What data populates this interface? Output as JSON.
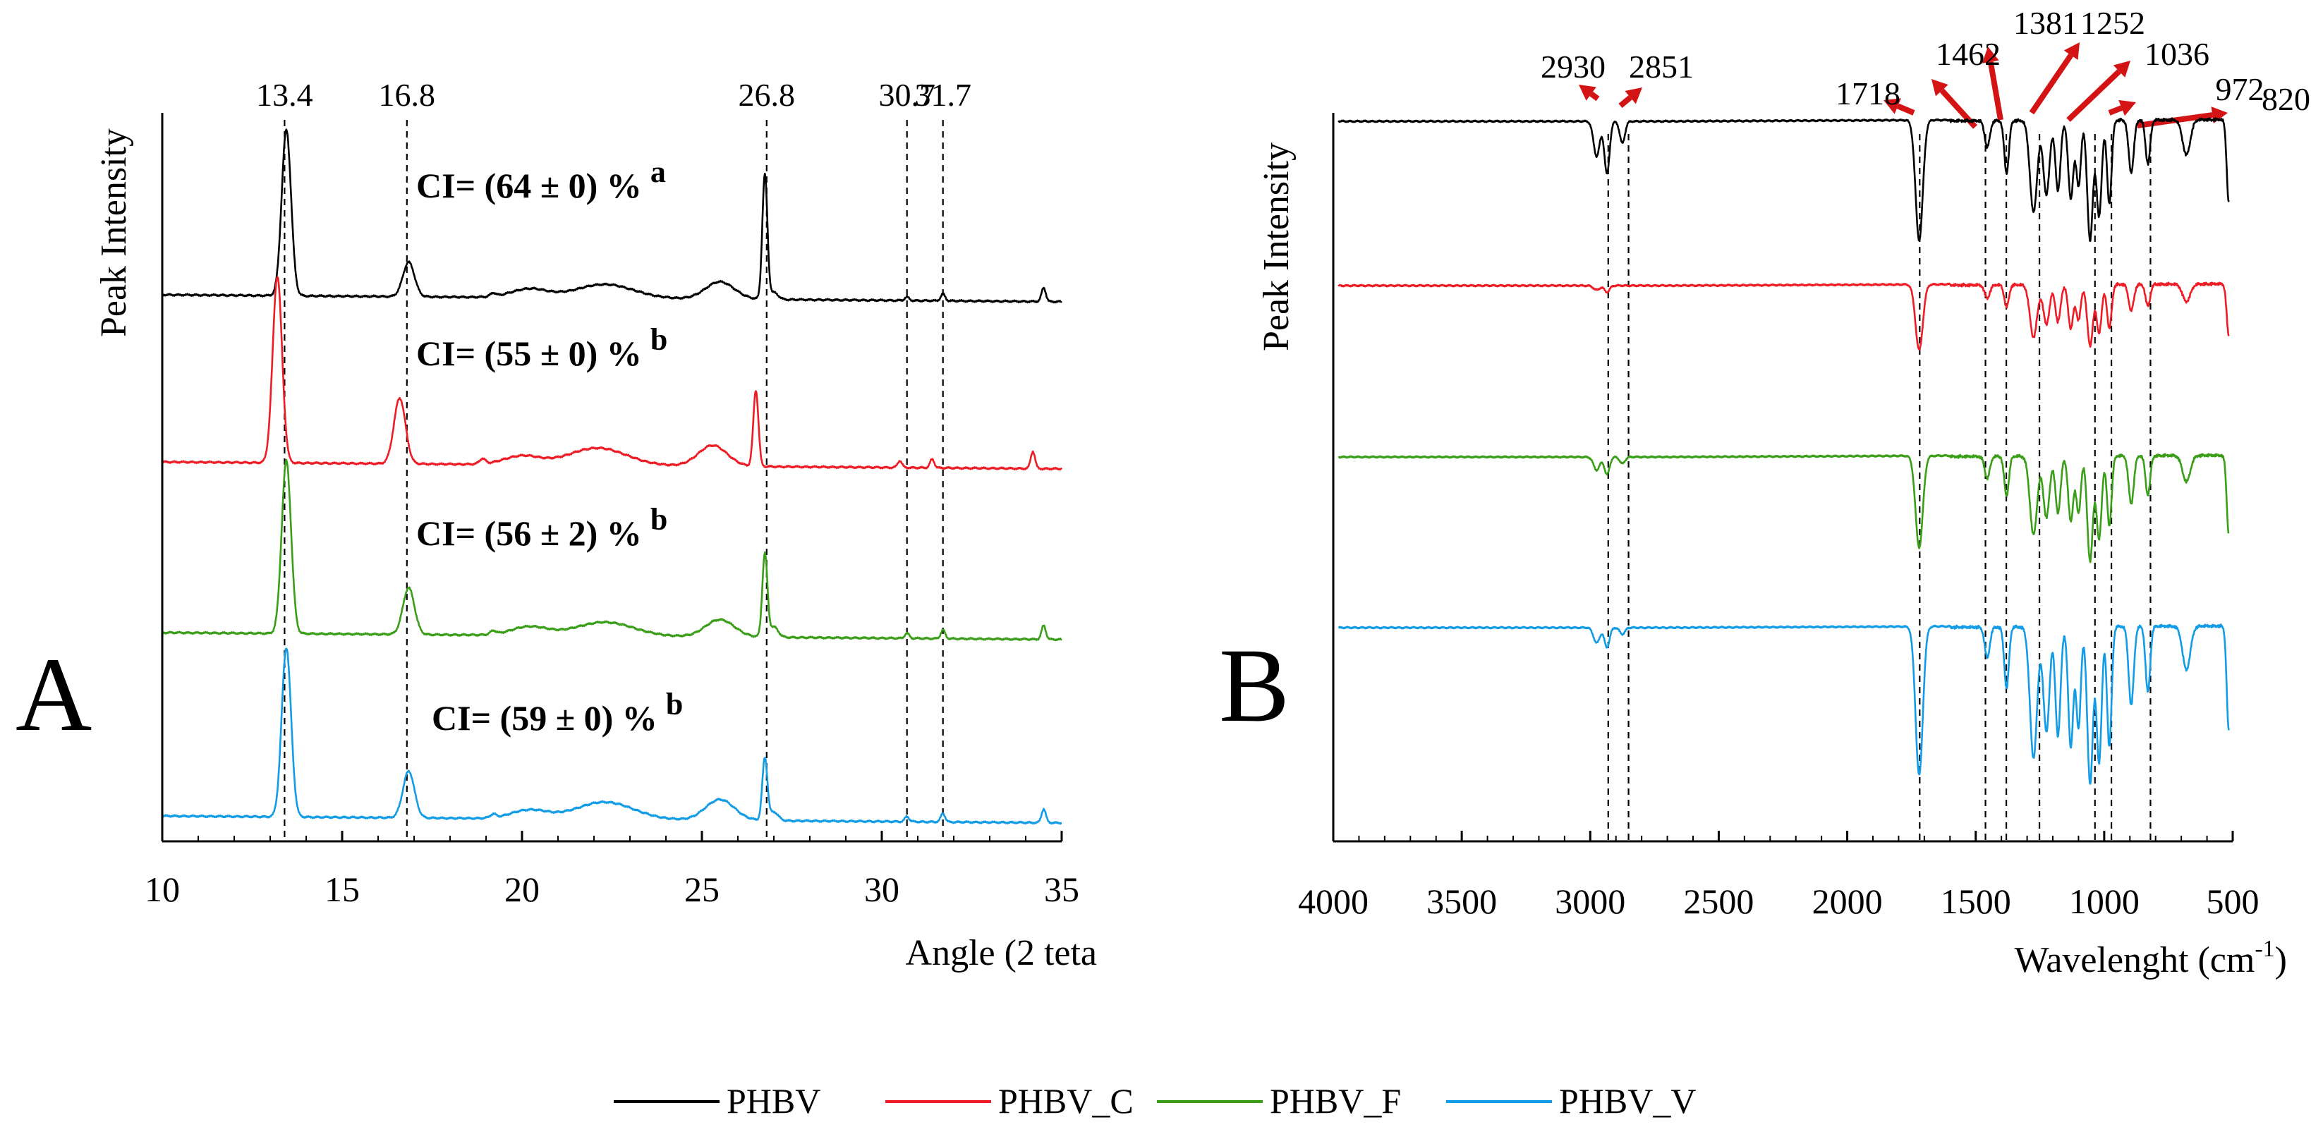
{
  "figure": {
    "legend": [
      {
        "name": "PHBV",
        "color": "#000000"
      },
      {
        "name": "PHBV_C",
        "color": "#ee1c25"
      },
      {
        "name": "PHBV_F",
        "color": "#3a9e19"
      },
      {
        "name": "PHBV_V",
        "color": "#139ce6"
      }
    ]
  },
  "chart_data": [
    {
      "panel": "A",
      "type": "line",
      "xlabel": "Angle (2 teta",
      "ylabel": "Peak Intensity",
      "xlim": [
        10,
        35
      ],
      "xticks": [
        "10",
        "15",
        "20",
        "25",
        "30",
        "35"
      ],
      "peak_lines": [
        13.4,
        16.8,
        26.8,
        30.7,
        31.7
      ],
      "peak_labels": [
        "13.4",
        "16.8",
        "26.8",
        "30.7",
        "31.7"
      ],
      "series": [
        {
          "name": "PHBV",
          "color": "#000000",
          "annotation": "CI= (64 ± 0) %",
          "annotation_letter": "a",
          "peaks": [
            [
              13.45,
              0.96,
              0.13
            ],
            [
              16.85,
              0.2,
              0.16
            ],
            [
              19.2,
              0.02,
              0.08
            ],
            [
              20.2,
              0.05,
              0.5
            ],
            [
              22.3,
              0.08,
              0.8
            ],
            [
              25.5,
              0.1,
              0.4
            ],
            [
              26.75,
              0.72,
              0.07
            ],
            [
              27.0,
              0.04,
              0.12
            ],
            [
              30.7,
              0.02,
              0.06
            ],
            [
              31.7,
              0.04,
              0.06
            ],
            [
              34.5,
              0.08,
              0.06
            ]
          ]
        },
        {
          "name": "PHBV_C",
          "color": "#ee1c25",
          "annotation": "CI= (55 ± 0) %",
          "annotation_letter": "b",
          "peaks": [
            [
              13.2,
              1.08,
              0.13
            ],
            [
              16.6,
              0.38,
              0.16
            ],
            [
              18.9,
              0.03,
              0.08
            ],
            [
              20.0,
              0.05,
              0.5
            ],
            [
              22.1,
              0.1,
              0.8
            ],
            [
              25.3,
              0.12,
              0.4
            ],
            [
              26.5,
              0.44,
              0.07
            ],
            [
              30.5,
              0.04,
              0.06
            ],
            [
              31.4,
              0.05,
              0.06
            ],
            [
              34.2,
              0.1,
              0.06
            ]
          ]
        },
        {
          "name": "PHBV_F",
          "color": "#3a9e19",
          "annotation": "CI= (56 ± 2) %",
          "annotation_letter": "b",
          "peaks": [
            [
              13.45,
              1.0,
              0.13
            ],
            [
              16.85,
              0.27,
              0.16
            ],
            [
              19.2,
              0.02,
              0.08
            ],
            [
              20.2,
              0.05,
              0.5
            ],
            [
              22.3,
              0.08,
              0.8
            ],
            [
              25.5,
              0.1,
              0.4
            ],
            [
              26.75,
              0.48,
              0.07
            ],
            [
              27.0,
              0.06,
              0.12
            ],
            [
              30.7,
              0.03,
              0.06
            ],
            [
              31.7,
              0.05,
              0.06
            ],
            [
              34.5,
              0.08,
              0.06
            ]
          ]
        },
        {
          "name": "PHBV_V",
          "color": "#139ce6",
          "annotation": "CI= (59 ± 0) %",
          "annotation_letter": "b",
          "peaks": [
            [
              13.45,
              0.98,
              0.13
            ],
            [
              16.85,
              0.27,
              0.16
            ],
            [
              19.2,
              0.02,
              0.08
            ],
            [
              20.2,
              0.05,
              0.5
            ],
            [
              22.3,
              0.1,
              0.8
            ],
            [
              25.5,
              0.12,
              0.4
            ],
            [
              26.75,
              0.36,
              0.07
            ],
            [
              27.0,
              0.05,
              0.12
            ],
            [
              30.7,
              0.03,
              0.06
            ],
            [
              31.7,
              0.05,
              0.06
            ],
            [
              34.5,
              0.08,
              0.06
            ]
          ]
        }
      ]
    },
    {
      "panel": "B",
      "type": "line",
      "xlabel": "Wavelenght (cm",
      "xlabel_sup": "-1",
      "xlabel_close": ")",
      "ylabel": "Peak Intensity",
      "xlim": [
        4000,
        500
      ],
      "xticks": [
        "4000",
        "3500",
        "3000",
        "2500",
        "2000",
        "1500",
        "1000",
        "500"
      ],
      "peak_lines": [
        2930,
        2851,
        1718,
        1462,
        1381,
        1252,
        1036,
        972,
        820
      ],
      "peak_labels": [
        "2930",
        "2851",
        "1718",
        "1462",
        "1381",
        "1252",
        "1036",
        "972",
        "820"
      ],
      "series": [
        {
          "name": "PHBV",
          "color": "#000000",
          "bands": [
            [
              2975,
              0.16,
              12
            ],
            [
              2935,
              0.24,
              10
            ],
            [
              2875,
              0.1,
              10
            ],
            [
              1720,
              0.55,
              14
            ],
            [
              1455,
              0.12,
              10
            ],
            [
              1380,
              0.24,
              9
            ],
            [
              1275,
              0.42,
              14
            ],
            [
              1225,
              0.34,
              12
            ],
            [
              1180,
              0.32,
              10
            ],
            [
              1130,
              0.36,
              10
            ],
            [
              1100,
              0.3,
              9
            ],
            [
              1055,
              0.55,
              11
            ],
            [
              1020,
              0.44,
              10
            ],
            [
              980,
              0.38,
              9
            ],
            [
              895,
              0.24,
              10
            ],
            [
              830,
              0.2,
              9
            ],
            [
              680,
              0.16,
              15
            ],
            [
              515,
              0.38,
              8
            ]
          ]
        },
        {
          "name": "PHBV_C",
          "color": "#ee1c25",
          "bands": [
            [
              2975,
              0.02,
              12
            ],
            [
              2935,
              0.03,
              10
            ],
            [
              1720,
              0.3,
              14
            ],
            [
              1455,
              0.06,
              10
            ],
            [
              1380,
              0.1,
              9
            ],
            [
              1275,
              0.24,
              14
            ],
            [
              1225,
              0.18,
              12
            ],
            [
              1180,
              0.17,
              10
            ],
            [
              1130,
              0.2,
              10
            ],
            [
              1100,
              0.16,
              9
            ],
            [
              1055,
              0.28,
              11
            ],
            [
              1020,
              0.22,
              10
            ],
            [
              980,
              0.2,
              9
            ],
            [
              895,
              0.12,
              10
            ],
            [
              830,
              0.1,
              9
            ],
            [
              680,
              0.08,
              15
            ],
            [
              515,
              0.24,
              8
            ]
          ]
        },
        {
          "name": "PHBV_F",
          "color": "#3a9e19",
          "bands": [
            [
              2975,
              0.06,
              12
            ],
            [
              2935,
              0.08,
              10
            ],
            [
              2875,
              0.03,
              10
            ],
            [
              1720,
              0.42,
              14
            ],
            [
              1455,
              0.1,
              10
            ],
            [
              1380,
              0.18,
              9
            ],
            [
              1275,
              0.36,
              14
            ],
            [
              1225,
              0.28,
              12
            ],
            [
              1180,
              0.26,
              10
            ],
            [
              1130,
              0.3,
              10
            ],
            [
              1100,
              0.26,
              9
            ],
            [
              1055,
              0.48,
              11
            ],
            [
              1020,
              0.38,
              10
            ],
            [
              980,
              0.32,
              9
            ],
            [
              895,
              0.22,
              10
            ],
            [
              830,
              0.18,
              9
            ],
            [
              680,
              0.12,
              15
            ],
            [
              515,
              0.36,
              8
            ]
          ]
        },
        {
          "name": "PHBV_V",
          "color": "#139ce6",
          "bands": [
            [
              2975,
              0.07,
              12
            ],
            [
              2935,
              0.09,
              10
            ],
            [
              2875,
              0.03,
              10
            ],
            [
              1720,
              0.68,
              14
            ],
            [
              1455,
              0.14,
              10
            ],
            [
              1380,
              0.28,
              9
            ],
            [
              1275,
              0.6,
              14
            ],
            [
              1225,
              0.48,
              12
            ],
            [
              1180,
              0.5,
              10
            ],
            [
              1130,
              0.55,
              10
            ],
            [
              1100,
              0.46,
              9
            ],
            [
              1055,
              0.72,
              11
            ],
            [
              1020,
              0.62,
              10
            ],
            [
              980,
              0.55,
              9
            ],
            [
              895,
              0.36,
              10
            ],
            [
              830,
              0.3,
              9
            ],
            [
              680,
              0.2,
              15
            ],
            [
              515,
              0.48,
              8
            ]
          ]
        }
      ]
    }
  ]
}
